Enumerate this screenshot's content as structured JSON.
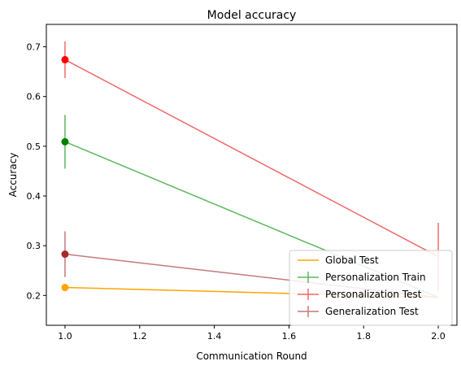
{
  "chart_data": {
    "type": "line",
    "title": "Model accuracy",
    "xlabel": "Communication Round",
    "ylabel": "Accuracy",
    "xlim": [
      0.95,
      2.05
    ],
    "ylim": [
      0.14,
      0.745
    ],
    "xticks": [
      1.0,
      1.2,
      1.4,
      1.6,
      1.8,
      2.0
    ],
    "xtick_labels": [
      "1.0",
      "1.2",
      "1.4",
      "1.6",
      "1.8",
      "2.0"
    ],
    "yticks": [
      0.2,
      0.3,
      0.4,
      0.5,
      0.6,
      0.7
    ],
    "ytick_labels": [
      "0.2",
      "0.3",
      "0.4",
      "0.5",
      "0.6",
      "0.7"
    ],
    "grid": false,
    "legend_position": "lower-right",
    "series": [
      {
        "name": "Global Test",
        "color": "#ffa500",
        "marker_color": "#ffa500",
        "error_bars": false,
        "x": [
          1,
          2
        ],
        "y": [
          0.216,
          0.196
        ],
        "err": [
          0,
          0
        ]
      },
      {
        "name": "Personalization Train",
        "color": "#5cb85c",
        "marker_color": "#008000",
        "error_bars": true,
        "x": [
          1,
          2
        ],
        "y": [
          0.509,
          0.196
        ],
        "err": [
          0.054,
          0.0
        ]
      },
      {
        "name": "Personalization Test",
        "color": "#f26b6b",
        "marker_color": "#ff0000",
        "error_bars": true,
        "x": [
          1,
          2
        ],
        "y": [
          0.674,
          0.278
        ],
        "err": [
          0.037,
          0.068
        ]
      },
      {
        "name": "Generalization Test",
        "color": "#c47a7a",
        "marker_color": "#a52a2a",
        "error_bars": true,
        "x": [
          1,
          2
        ],
        "y": [
          0.283,
          0.196
        ],
        "err": [
          0.046,
          0.0
        ]
      }
    ]
  }
}
